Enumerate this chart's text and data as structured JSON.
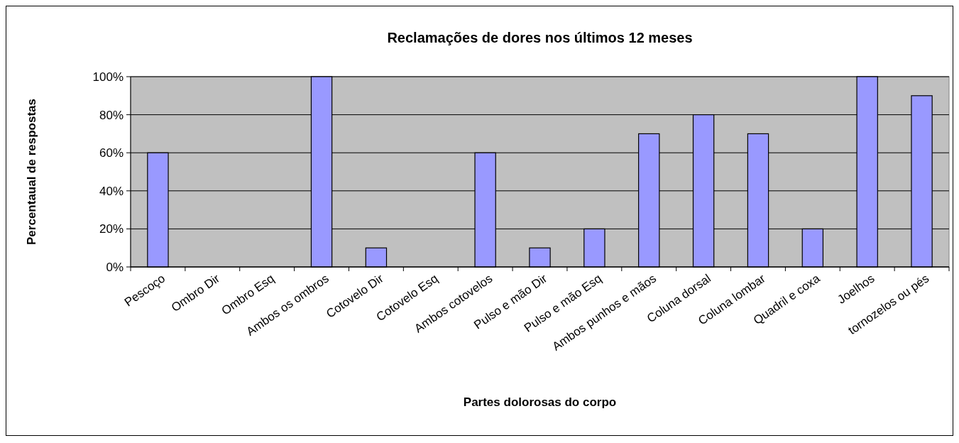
{
  "chart_data": {
    "type": "bar",
    "title": "Reclamações de dores nos últimos 12 meses",
    "xlabel": "Partes dolorosas do corpo",
    "ylabel": "Percentaual de respostas",
    "categories": [
      "Pescoço",
      "Ombro Dir",
      "Ombro Esq",
      "Ambos os ombros",
      "Cotovelo Dir",
      "Cotovelo Esq",
      "Ambos cotovelos",
      "Pulso e mão Dir",
      "Pulso e mão Esq",
      "Ambos punhos e mãos",
      "Coluna dorsal",
      "Coluna lombar",
      "Quadril e coxa",
      "Joelhos",
      "tornozelos ou pés"
    ],
    "values": [
      60,
      0,
      0,
      100,
      10,
      0,
      60,
      10,
      20,
      70,
      80,
      70,
      20,
      100,
      90
    ],
    "color": "#9999ff",
    "ylim": [
      0,
      100
    ],
    "yticks": [
      {
        "value": 0,
        "label": "0%"
      },
      {
        "value": 20,
        "label": "20%"
      },
      {
        "value": 40,
        "label": "40%"
      },
      {
        "value": 60,
        "label": "60%"
      },
      {
        "value": 80,
        "label": "80%"
      },
      {
        "value": 100,
        "label": "100%"
      }
    ],
    "grid": "y"
  }
}
